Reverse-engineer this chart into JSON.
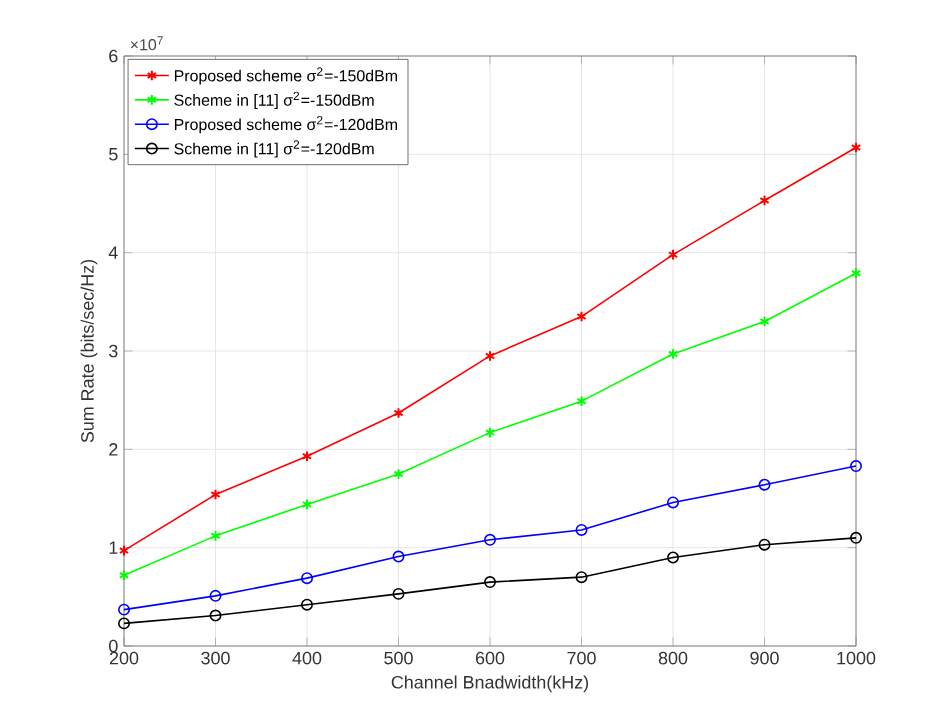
{
  "chart_data": {
    "type": "line",
    "xlabel": "Channel Bnadwidth(kHz)",
    "ylabel": "Sum Rate (bits/sec/Hz)",
    "annotations": [
      "×10$^{7}$"
    ],
    "x": [
      200,
      300,
      400,
      500,
      600,
      700,
      800,
      900,
      1000
    ],
    "series": [
      {
        "name": "Proposed scheme σ$^{2}$=-150dBm",
        "color": "#ff0000",
        "marker": "cross",
        "values": [
          0.97,
          1.54,
          1.93,
          2.37,
          2.95,
          3.35,
          3.98,
          4.53,
          5.07
        ]
      },
      {
        "name": "Scheme in [11]  σ$^{2}$=-150dBm",
        "color": "#00ff00",
        "marker": "cross",
        "values": [
          0.72,
          1.12,
          1.44,
          1.75,
          2.17,
          2.49,
          2.97,
          3.3,
          3.79
        ]
      },
      {
        "name": "Proposed scheme σ$^{2}$=-120dBm",
        "color": "#0000ff",
        "marker": "circle",
        "values": [
          0.37,
          0.51,
          0.69,
          0.91,
          1.08,
          1.18,
          1.46,
          1.64,
          1.83
        ]
      },
      {
        "name": "Scheme in [11] σ$^{2}$=-120dBm",
        "color": "#000000",
        "marker": "circle",
        "values": [
          0.23,
          0.31,
          0.42,
          0.53,
          0.65,
          0.7,
          0.9,
          1.03,
          1.1
        ]
      }
    ],
    "xlim": [
      200,
      1000
    ],
    "ylim": [
      0,
      6
    ],
    "xticks": [
      200,
      300,
      400,
      500,
      600,
      700,
      800,
      900,
      1000
    ],
    "yticks": [
      0,
      1,
      2,
      3,
      4,
      5,
      6
    ],
    "grid": true,
    "legend": "top left",
    "line_style": "solid"
  }
}
